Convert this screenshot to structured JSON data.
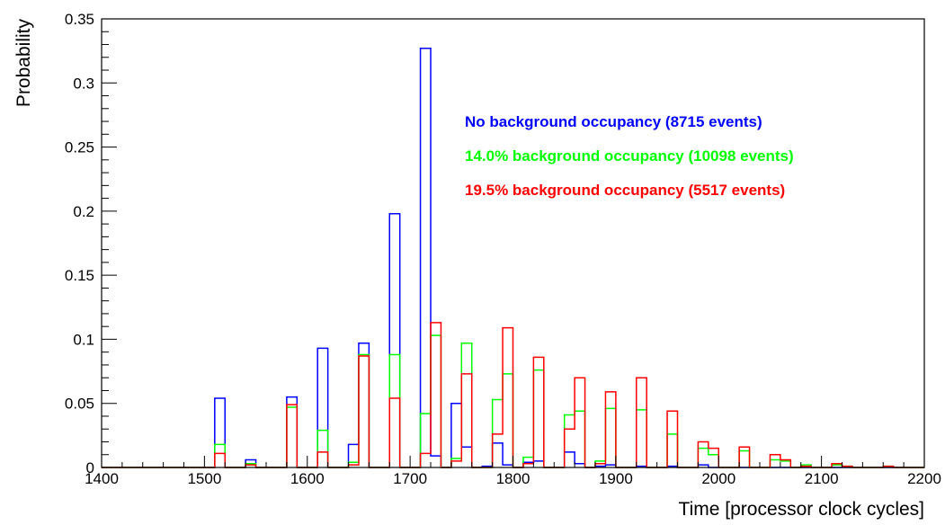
{
  "chart_data": {
    "type": "histogram",
    "xlabel": "Time [processor clock cycles]",
    "ylabel": "Probability",
    "xlim": [
      1400,
      2200
    ],
    "ylim": [
      0,
      0.35
    ],
    "bin_width": 10,
    "x_ticks": [
      1400,
      1500,
      1600,
      1700,
      1800,
      1900,
      2000,
      2100,
      2200
    ],
    "y_ticks": [
      0,
      0.05,
      0.1,
      0.15,
      0.2,
      0.25,
      0.3,
      0.35
    ],
    "x_tick_labels": [
      "1400",
      "1500",
      "1600",
      "1700",
      "1800",
      "1900",
      "2000",
      "2100",
      "2200"
    ],
    "y_tick_labels": [
      "0",
      "0.05",
      "0.1",
      "0.15",
      "0.2",
      "0.25",
      "0.3",
      "0.35"
    ],
    "legend_placement": "top-right",
    "grid": false,
    "series": [
      {
        "name": "No background occupancy (8715 events)",
        "color": "#0000ff",
        "bins": [
          [
            1510,
            0.054
          ],
          [
            1540,
            0.006
          ],
          [
            1580,
            0.055
          ],
          [
            1610,
            0.093
          ],
          [
            1640,
            0.018
          ],
          [
            1650,
            0.097
          ],
          [
            1680,
            0.198
          ],
          [
            1710,
            0.327
          ],
          [
            1720,
            0.009
          ],
          [
            1740,
            0.05
          ],
          [
            1750,
            0.016
          ],
          [
            1770,
            0.001
          ],
          [
            1780,
            0.019
          ],
          [
            1790,
            0.002
          ],
          [
            1810,
            0.004
          ],
          [
            1820,
            0.005
          ],
          [
            1850,
            0.012
          ],
          [
            1860,
            0.003
          ],
          [
            1880,
            0.001
          ],
          [
            1890,
            0.002
          ],
          [
            1920,
            0.001
          ],
          [
            1950,
            0.001
          ],
          [
            1980,
            0.002
          ]
        ]
      },
      {
        "name": "14.0% background occupancy (10098 events)",
        "color": "#00ff00",
        "bins": [
          [
            1510,
            0.018
          ],
          [
            1540,
            0.003
          ],
          [
            1580,
            0.047
          ],
          [
            1610,
            0.029
          ],
          [
            1640,
            0.004
          ],
          [
            1650,
            0.088
          ],
          [
            1680,
            0.088
          ],
          [
            1710,
            0.042
          ],
          [
            1720,
            0.103
          ],
          [
            1740,
            0.007
          ],
          [
            1750,
            0.097
          ],
          [
            1780,
            0.053
          ],
          [
            1790,
            0.073
          ],
          [
            1810,
            0.008
          ],
          [
            1820,
            0.076
          ],
          [
            1850,
            0.041
          ],
          [
            1860,
            0.044
          ],
          [
            1880,
            0.005
          ],
          [
            1890,
            0.046
          ],
          [
            1920,
            0.045
          ],
          [
            1950,
            0.026
          ],
          [
            1980,
            0.015
          ],
          [
            1990,
            0.01
          ],
          [
            2020,
            0.013
          ],
          [
            2050,
            0.006
          ],
          [
            2060,
            0.005
          ],
          [
            2080,
            0.002
          ],
          [
            2110,
            0.002
          ],
          [
            2120,
            0.001
          ],
          [
            2160,
            0.001
          ]
        ]
      },
      {
        "name": "19.5% background occupancy (5517 events)",
        "color": "#ff0000",
        "bins": [
          [
            1510,
            0.011
          ],
          [
            1540,
            0.002
          ],
          [
            1580,
            0.049
          ],
          [
            1610,
            0.012
          ],
          [
            1640,
            0.002
          ],
          [
            1650,
            0.087
          ],
          [
            1680,
            0.054
          ],
          [
            1710,
            0.011
          ],
          [
            1720,
            0.113
          ],
          [
            1740,
            0.005
          ],
          [
            1750,
            0.073
          ],
          [
            1780,
            0.026
          ],
          [
            1790,
            0.109
          ],
          [
            1810,
            0.003
          ],
          [
            1820,
            0.086
          ],
          [
            1850,
            0.03
          ],
          [
            1860,
            0.07
          ],
          [
            1880,
            0.003
          ],
          [
            1890,
            0.059
          ],
          [
            1920,
            0.07
          ],
          [
            1950,
            0.044
          ],
          [
            1980,
            0.02
          ],
          [
            1990,
            0.015
          ],
          [
            2020,
            0.016
          ],
          [
            2050,
            0.01
          ],
          [
            2060,
            0.006
          ],
          [
            2080,
            0.001
          ],
          [
            2110,
            0.003
          ],
          [
            2120,
            0.001
          ],
          [
            2160,
            0.001
          ]
        ]
      }
    ]
  }
}
